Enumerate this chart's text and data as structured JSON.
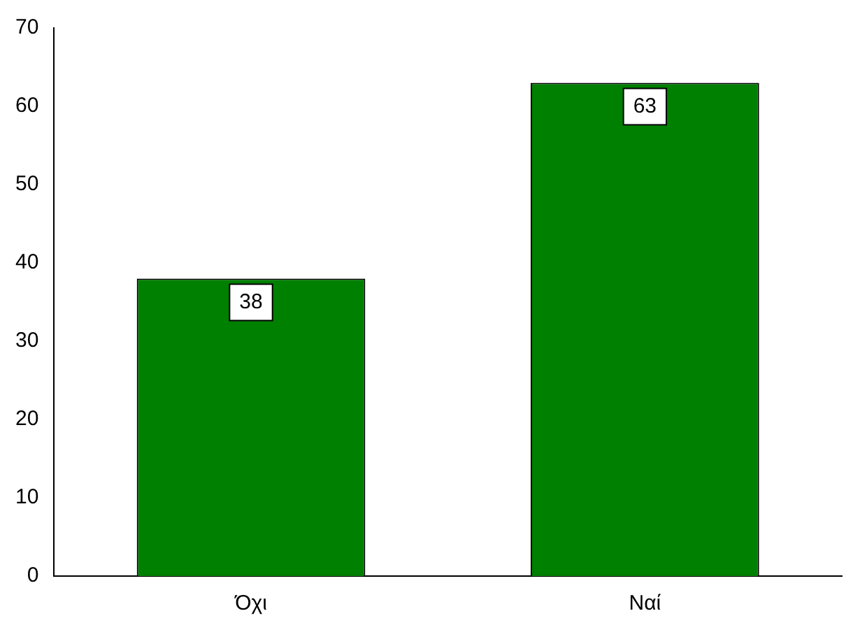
{
  "chart_data": {
    "type": "bar",
    "categories": [
      "Όχι",
      "Ναί"
    ],
    "values": [
      38,
      63
    ],
    "color": "#008000",
    "ylim": [
      0,
      70
    ],
    "yticks": [
      0,
      10,
      20,
      30,
      40,
      50,
      60,
      70
    ],
    "grid": false,
    "legend": false,
    "data_labels": true
  }
}
